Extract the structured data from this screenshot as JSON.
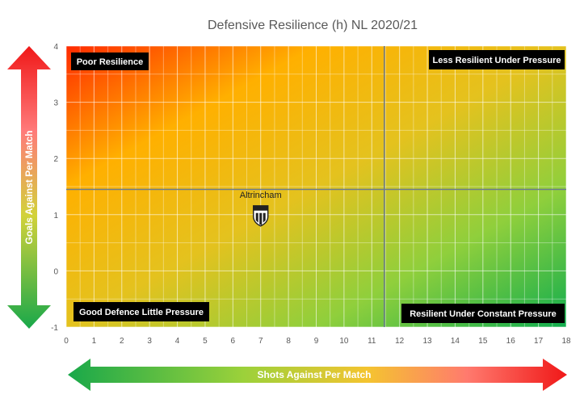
{
  "chart_data": {
    "type": "scatter",
    "title": "Defensive Resilience (h) NL 2020/21",
    "xlabel": "Shots Against Per Match",
    "ylabel": "Goals Against Per Match",
    "xlim": [
      0,
      18
    ],
    "ylim": [
      -1,
      4
    ],
    "xticks": [
      0,
      1,
      2,
      3,
      4,
      5,
      6,
      7,
      8,
      9,
      10,
      11,
      12,
      13,
      14,
      15,
      16,
      17,
      18
    ],
    "yticks": [
      -1,
      0,
      1,
      2,
      3,
      4
    ],
    "grid": true,
    "reference_lines": {
      "x": 11.45,
      "y": 1.45
    },
    "points": [
      {
        "label": "Altrincham",
        "x": 7.0,
        "y": 1.0,
        "icon": "club-crest-icon"
      }
    ],
    "quadrants": {
      "top_left": "Poor Resilience",
      "top_right": "Less Resilient Under Pressure",
      "bottom_left": "Good Defence Little Pressure",
      "bottom_right": "Resilient Under Constant Pressure"
    },
    "colors": {
      "red": "#ff3300",
      "orange": "#ffb300",
      "yellow": "#e6c020",
      "green": "#1eb050",
      "gridline": "#ffffff",
      "refline": "#6a7a90",
      "label_box": "#000000"
    }
  }
}
